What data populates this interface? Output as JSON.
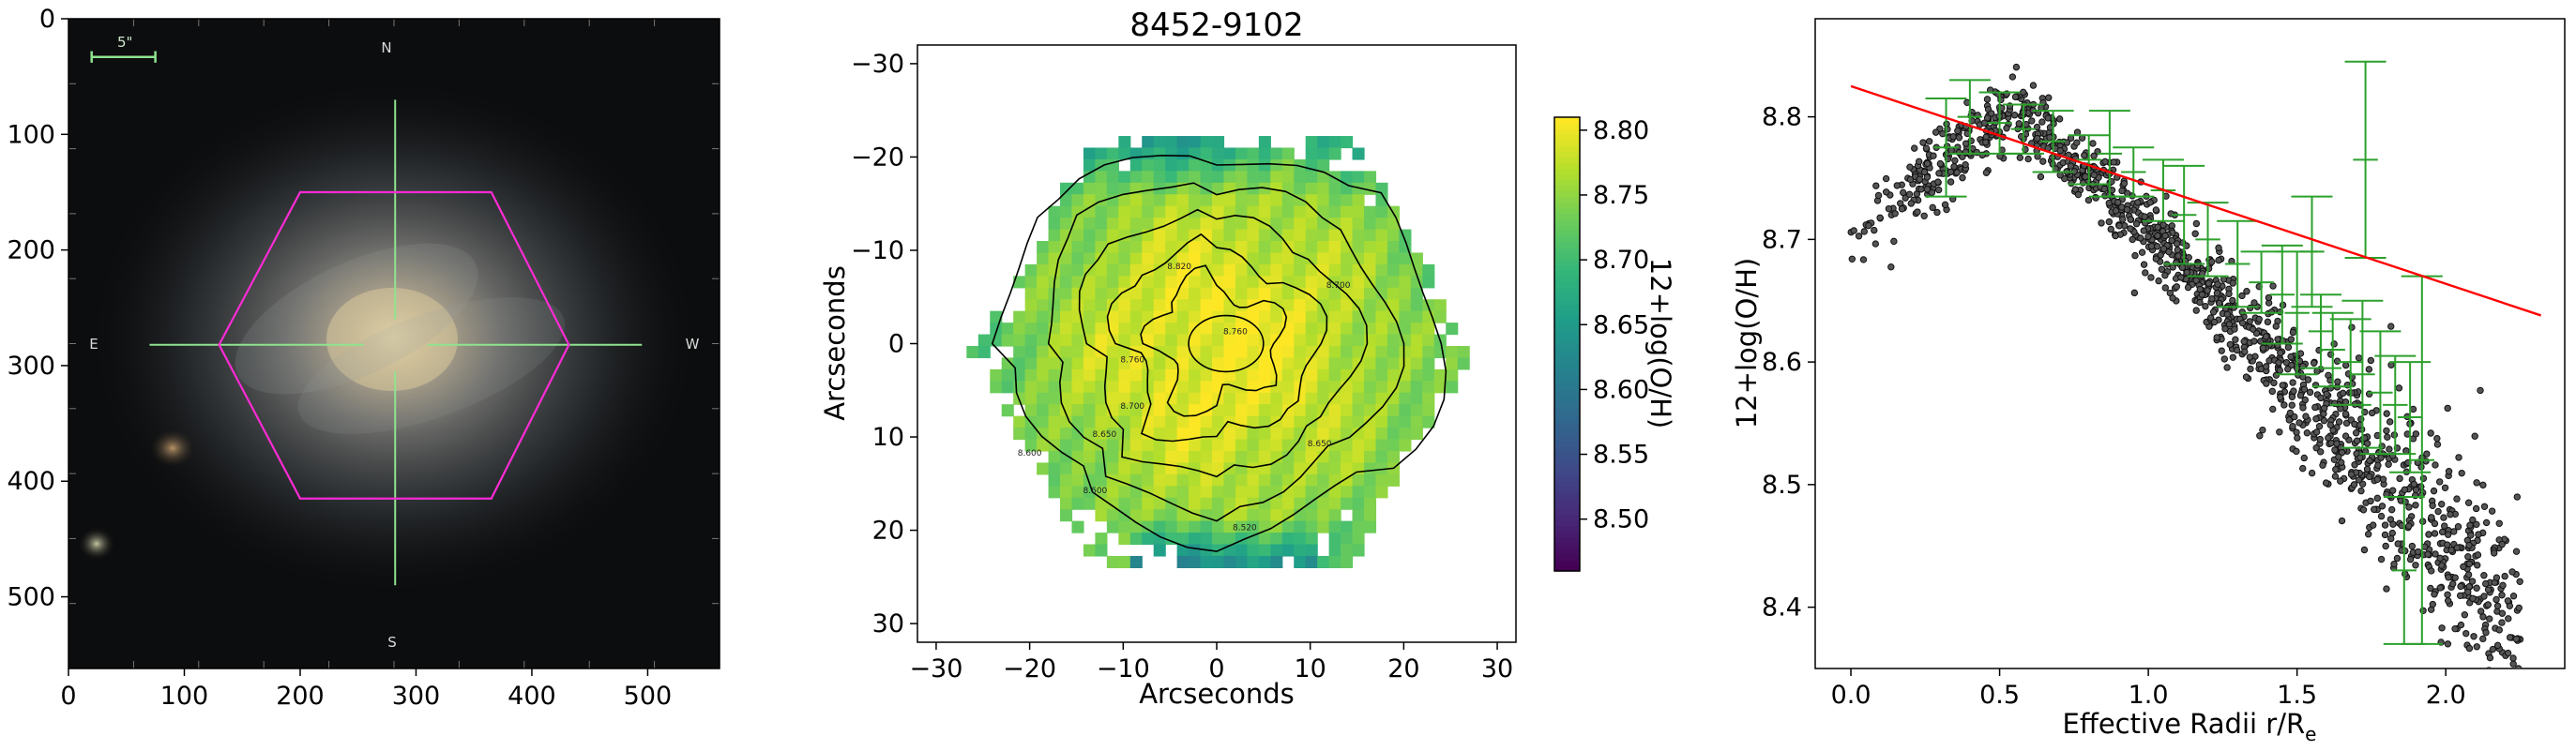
{
  "chart_data": [
    {
      "type": "image",
      "description_keys": [
        "galaxy image with hexagon and crosshair"
      ],
      "xlim": [
        0,
        562
      ],
      "ylim": [
        562,
        0
      ],
      "xticks": [
        0,
        100,
        200,
        300,
        400,
        500
      ],
      "yticks": [
        0,
        100,
        200,
        300,
        400,
        500
      ],
      "scale_bar_label": "5\"",
      "compass": {
        "n": "N",
        "s": "S",
        "e": "E",
        "w": "W"
      },
      "hexagon": [
        [
          200,
          150
        ],
        [
          365,
          150
        ],
        [
          432,
          282
        ],
        [
          365,
          415
        ],
        [
          200,
          415
        ],
        [
          130,
          282
        ]
      ],
      "crosshair_center": [
        282,
        282
      ],
      "colors": {
        "hexagon": "#ff2bd6",
        "crosshair": "#8fe38f",
        "scale_bar": "#8fe38f",
        "background": "#0c0d0e"
      }
    },
    {
      "type": "heatmap",
      "title": "8452-9102",
      "xlabel": "Arcseconds",
      "ylabel": "Arcseconds",
      "xlim": [
        -32,
        32
      ],
      "ylim": [
        32,
        -32
      ],
      "xticks": [
        -30,
        -20,
        -10,
        0,
        10,
        20,
        30
      ],
      "yticks": [
        -30,
        -20,
        -10,
        0,
        10,
        20,
        30
      ],
      "colorbar": {
        "label": "12+log(O/H)",
        "min": 8.46,
        "max": 8.81,
        "ticks": [
          8.5,
          8.55,
          8.6,
          8.65,
          8.7,
          8.75,
          8.8
        ],
        "colormap": "viridis"
      },
      "contour_levels": [
        8.52,
        8.6,
        8.65,
        8.7,
        8.76,
        8.82
      ],
      "contour_labels": [
        "8.820",
        "8.760",
        "8.760",
        "8.700",
        "8.700",
        "8.650",
        "8.650",
        "8.600",
        "8.600",
        "8.520"
      ],
      "hexagon_radius_arcsec": 27
    },
    {
      "type": "scatter",
      "xlabel": "Effective Radii r/R",
      "xlabel_sub": "e",
      "ylabel": "12+log(O/H)",
      "xlim": [
        -0.12,
        2.4
      ],
      "ylim": [
        8.35,
        8.88
      ],
      "xticks": [
        0.0,
        0.5,
        1.0,
        1.5,
        2.0
      ],
      "yticks": [
        8.4,
        8.5,
        8.6,
        8.7,
        8.8
      ],
      "point_count": 1400,
      "fit_line": {
        "x": [
          0.0,
          2.32
        ],
        "y": [
          8.825,
          8.638
        ],
        "color": "#ff0000"
      },
      "error_bars": [
        {
          "x": 0.32,
          "y": 8.775,
          "err": 0.04
        },
        {
          "x": 0.4,
          "y": 8.8,
          "err": 0.03
        },
        {
          "x": 0.5,
          "y": 8.795,
          "err": 0.025
        },
        {
          "x": 0.58,
          "y": 8.79,
          "err": 0.02
        },
        {
          "x": 0.68,
          "y": 8.78,
          "err": 0.025
        },
        {
          "x": 0.8,
          "y": 8.765,
          "err": 0.02
        },
        {
          "x": 0.87,
          "y": 8.77,
          "err": 0.035
        },
        {
          "x": 0.95,
          "y": 8.755,
          "err": 0.02
        },
        {
          "x": 1.05,
          "y": 8.74,
          "err": 0.025
        },
        {
          "x": 1.12,
          "y": 8.72,
          "err": 0.04
        },
        {
          "x": 1.2,
          "y": 8.7,
          "err": 0.03
        },
        {
          "x": 1.3,
          "y": 8.68,
          "err": 0.035
        },
        {
          "x": 1.38,
          "y": 8.665,
          "err": 0.025
        },
        {
          "x": 1.45,
          "y": 8.655,
          "err": 0.04
        },
        {
          "x": 1.5,
          "y": 8.64,
          "err": 0.05
        },
        {
          "x": 1.55,
          "y": 8.69,
          "err": 0.045
        },
        {
          "x": 1.58,
          "y": 8.625,
          "err": 0.03
        },
        {
          "x": 1.62,
          "y": 8.61,
          "err": 0.03
        },
        {
          "x": 1.68,
          "y": 8.6,
          "err": 0.035
        },
        {
          "x": 1.72,
          "y": 8.59,
          "err": 0.06
        },
        {
          "x": 1.73,
          "y": 8.765,
          "err": 0.08
        },
        {
          "x": 1.78,
          "y": 8.575,
          "err": 0.05
        },
        {
          "x": 1.83,
          "y": 8.565,
          "err": 0.04
        },
        {
          "x": 1.86,
          "y": 8.43,
          "err": 0.06
        },
        {
          "x": 1.88,
          "y": 8.555,
          "err": 0.045
        },
        {
          "x": 1.92,
          "y": 8.52,
          "err": 0.15
        }
      ],
      "colors": {
        "points": "#333333",
        "error_bars": "#2ca02c"
      }
    }
  ]
}
